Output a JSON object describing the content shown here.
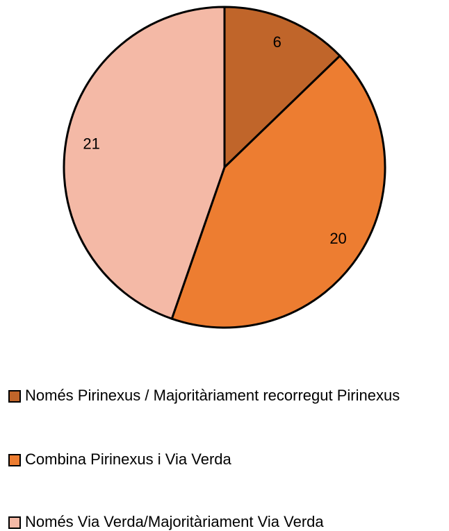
{
  "chart_data": {
    "type": "pie",
    "categories": [
      "Només Pirinexus / Majoritàriament recorregut Pirinexus",
      "Combina Pirinexus i Via Verda",
      "Només Via Verda/Majoritàriament Via Verda"
    ],
    "values": [
      6,
      20,
      21
    ],
    "colors": [
      "#c0652a",
      "#ed7d31",
      "#f4b9a6"
    ]
  }
}
